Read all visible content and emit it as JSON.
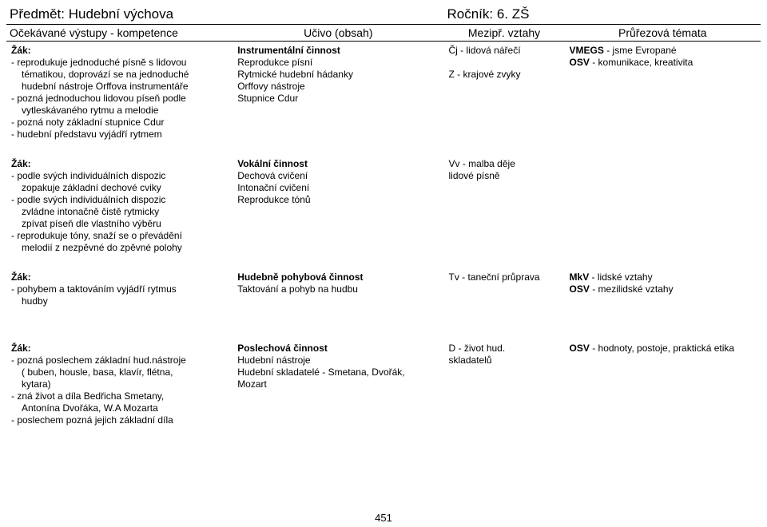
{
  "header": {
    "subject_label": "Předmět:",
    "subject_value": "Hudební výchova",
    "grade_label": "Ročník:",
    "grade_value": "6. ZŠ",
    "col1": "Očekávané výstupy - kompetence",
    "col2": "Učivo (obsah)",
    "col3": "Mezipř. vztahy",
    "col4": "Průřezová témata"
  },
  "rows": [
    {
      "c1_title": "Žák:",
      "c1_items": [
        "reprodukuje jednoduché písně s lidovou",
        "  tématikou, doprovází se na jednoduché",
        "  hudební nástroje Orffova instrumentáře",
        "pozná jednoduchou lidovou píseň podle",
        "  vytleskávaného rytmu a melodie",
        "pozná noty základní stupnice Cdur",
        "hudební představu vyjádří rytmem"
      ],
      "c2_title": "Instrumentální činnost",
      "c2_lines": [
        "Reprodukce písní",
        "Rytmické hudební hádanky",
        "Orffovy nástroje",
        "Stupnice Cdur"
      ],
      "c3_lines": [
        "Čj - lidová nářečí",
        "",
        "Z - krajové zvyky"
      ],
      "c4_lines_b": [
        "VMEGS",
        "OSV"
      ],
      "c4_lines_r": [
        " - jsme Evropané",
        " - komunikace, kreativita"
      ]
    },
    {
      "c1_title": "Žák:",
      "c1_items": [
        "podle svých individuálních dispozic",
        "  zopakuje základní dechové cviky",
        "podle svých individuálních dispozic",
        "  zvládne intonačně čistě rytmicky",
        "  zpívat píseň dle vlastního výběru",
        "reprodukuje tóny, snaží se o převádění",
        "  melodií z nezpěvné do zpěvné polohy"
      ],
      "c2_title": "Vokální činnost",
      "c2_lines": [
        "Dechová cvičení",
        "Intonační cvičení",
        "Reprodukce tónů"
      ],
      "c3_lines": [
        "Vv - malba děje",
        "lidové písně"
      ],
      "c4_lines_b": [],
      "c4_lines_r": []
    },
    {
      "c1_title": "Žák:",
      "c1_items": [
        "pohybem a taktováním vyjádří rytmus",
        "  hudby"
      ],
      "c2_title": "Hudebně pohybová činnost",
      "c2_lines": [
        "Taktování a pohyb na hudbu"
      ],
      "c3_lines": [
        "Tv - taneční průprava"
      ],
      "c4_lines_b": [
        "MkV",
        "OSV"
      ],
      "c4_lines_r": [
        " - lidské vztahy",
        " - mezilidské vztahy"
      ]
    },
    {
      "c1_title": "Žák:",
      "c1_items": [
        "pozná poslechem základní hud.nástroje",
        "  ( buben, housle, basa, klavír, flétna,",
        "  kytara)",
        "zná život a díla Bedřicha Smetany,",
        "  Antonína Dvořáka, W.A Mozarta",
        "poslechem pozná jejich základní díla"
      ],
      "c2_title": "Poslechová činnost",
      "c2_lines": [
        "Hudební nástroje",
        "Hudební skladatelé - Smetana, Dvořák,",
        "Mozart"
      ],
      "c3_lines": [
        "D - život hud.",
        "skladatelů"
      ],
      "c4_lines_b": [
        "OSV"
      ],
      "c4_lines_r": [
        " - hodnoty, postoje, praktická etika"
      ]
    }
  ],
  "page_number": "451"
}
